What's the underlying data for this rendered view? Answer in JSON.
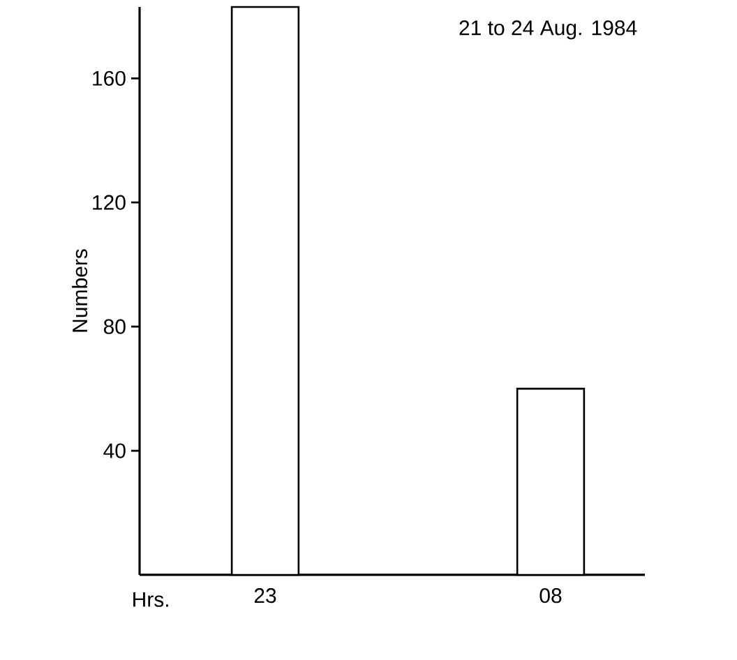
{
  "chart_data": {
    "type": "bar",
    "title": "21 to 24 Aug. 1984",
    "xlabel": "Hrs.",
    "ylabel": "Numbers",
    "categories": [
      "23",
      "08"
    ],
    "values": [
      183,
      60
    ],
    "color": "#ffffff",
    "ylim": [
      0,
      183
    ],
    "yticks": [
      40,
      80,
      120,
      160
    ],
    "grid": false
  }
}
